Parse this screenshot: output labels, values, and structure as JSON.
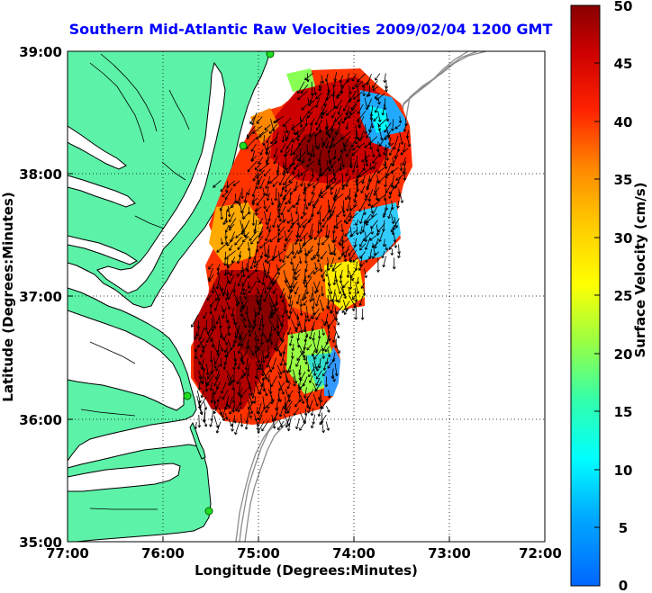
{
  "title": "Southern Mid-Atlantic Raw Velocities 2009/02/04 1200 GMT",
  "x_axis": {
    "label": "Longitude (Degrees:Minutes)",
    "range_deg": [
      -77,
      -72
    ],
    "ticks": [
      {
        "value": -77,
        "label": "77:00"
      },
      {
        "value": -76,
        "label": "76:00"
      },
      {
        "value": -75,
        "label": "75:00"
      },
      {
        "value": -74,
        "label": "74:00"
      },
      {
        "value": -73,
        "label": "73:00"
      },
      {
        "value": -72,
        "label": "72:00"
      }
    ]
  },
  "y_axis": {
    "label": "Latitude (Degrees:Minutes)",
    "range_deg": [
      35,
      39
    ],
    "ticks": [
      {
        "value": 39,
        "label": "39:00"
      },
      {
        "value": 38,
        "label": "38:00"
      },
      {
        "value": 37,
        "label": "37:00"
      },
      {
        "value": 36,
        "label": "36:00"
      },
      {
        "value": 35,
        "label": "35:00"
      }
    ]
  },
  "colorbar": {
    "label": "Surface Velocity (cm/s)",
    "range": [
      0,
      50
    ],
    "ticks": [
      {
        "value": 50,
        "label": "50"
      },
      {
        "value": 45,
        "label": "45"
      },
      {
        "value": 40,
        "label": "40"
      },
      {
        "value": 35,
        "label": "35"
      },
      {
        "value": 30,
        "label": "30"
      },
      {
        "value": 25,
        "label": "25"
      },
      {
        "value": 20,
        "label": "20"
      },
      {
        "value": 15,
        "label": "15"
      },
      {
        "value": 10,
        "label": "10"
      },
      {
        "value": 5,
        "label": "5"
      },
      {
        "value": 0,
        "label": "0"
      }
    ]
  },
  "colors": {
    "land": "#5cf2a8",
    "coast": "#000000",
    "bathymetry": "#8c8c8c",
    "stations": "#22dd22",
    "title": "#0000ff"
  }
}
